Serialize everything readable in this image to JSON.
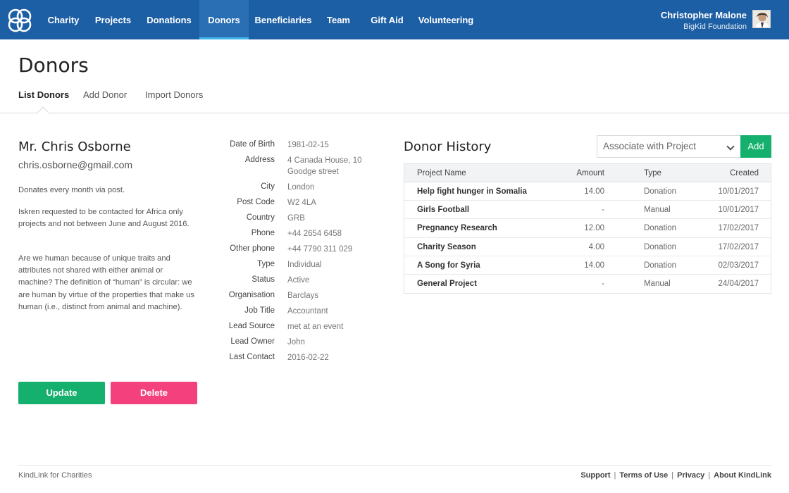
{
  "nav": {
    "items": [
      {
        "label": "Charity"
      },
      {
        "label": "Projects"
      },
      {
        "label": "Donations"
      },
      {
        "label": "Donors"
      },
      {
        "label": "Beneficiaries"
      },
      {
        "label": "Team"
      },
      {
        "label": "Gift Aid"
      },
      {
        "label": "Volunteering"
      }
    ],
    "active": "Donors",
    "user": {
      "name": "Christopher Malone",
      "org": "BigKid Foundation"
    }
  },
  "page": {
    "title": "Donors",
    "tabs": [
      {
        "label": "List Donors"
      },
      {
        "label": "Add Donor"
      },
      {
        "label": "Import Donors"
      }
    ],
    "active_tab": "List Donors"
  },
  "donor": {
    "name": "Mr. Chris Osborne",
    "email": "chris.osborne@gmail.com",
    "notes": [
      "Donates every month via post.",
      "Iskren requested to be contacted for Africa only projects and not between June and August 2016.",
      "Are we human because of unique traits and attributes not shared with either animal or machine? The definition of “human” is circular: we are human by virtue of the properties that make us human (i.e., distinct from animal and machine)."
    ],
    "update_label": "Update",
    "delete_label": "Delete"
  },
  "details": [
    {
      "label": "Date of Birth",
      "value": "1981-02-15"
    },
    {
      "label": "Address",
      "value": "4 Canada House, 10 Goodge street"
    },
    {
      "label": "City",
      "value": "London"
    },
    {
      "label": "Post Code",
      "value": "W2 4LA"
    },
    {
      "label": "Country",
      "value": "GRB"
    },
    {
      "label": "Phone",
      "value": "+44 2654 6458"
    },
    {
      "label": "Other phone",
      "value": "+44 7790 311 029"
    },
    {
      "label": "Type",
      "value": "Individual"
    },
    {
      "label": "Status",
      "value": "Active"
    },
    {
      "label": "Organisation",
      "value": "Barclays"
    },
    {
      "label": "Job Title",
      "value": "Accountant"
    },
    {
      "label": "Lead Source",
      "value": "met at an event"
    },
    {
      "label": "Lead Owner",
      "value": "John"
    },
    {
      "label": "Last Contact",
      "value": "2016-02-22"
    }
  ],
  "history": {
    "title": "Donor History",
    "select_value": "Associate with Project",
    "add_label": "Add",
    "columns": {
      "name": "Project Name",
      "amount": "Amount",
      "type": "Type",
      "created": "Created"
    },
    "rows": [
      {
        "name": "Help fight hunger in Somalia",
        "amount": "14.00",
        "type": "Donation",
        "created": "10/01/2017"
      },
      {
        "name": "Girls Football",
        "amount": "-",
        "type": "Manual",
        "created": "10/01/2017"
      },
      {
        "name": "Pregnancy Research",
        "amount": "12.00",
        "type": "Donation",
        "created": "17/02/2017"
      },
      {
        "name": "Charity Season",
        "amount": "4.00",
        "type": "Donation",
        "created": "17/02/2017"
      },
      {
        "name": "A Song for Syria",
        "amount": "14.00",
        "type": "Donation",
        "created": "02/03/2017"
      },
      {
        "name": "General Project",
        "amount": "-",
        "type": "Manual",
        "created": "24/04/2017"
      }
    ]
  },
  "footer": {
    "left": "KindLink for Charities",
    "links": [
      {
        "label": "Support"
      },
      {
        "label": "Terms of Use"
      },
      {
        "label": "Privacy"
      },
      {
        "label": "About KindLink"
      }
    ]
  },
  "colors": {
    "navbar": "#1d5fa5",
    "active_underline": "#3fb5e8",
    "update_button": "#15b06d",
    "delete_button": "#f4417e",
    "add_button": "#15b06d"
  }
}
